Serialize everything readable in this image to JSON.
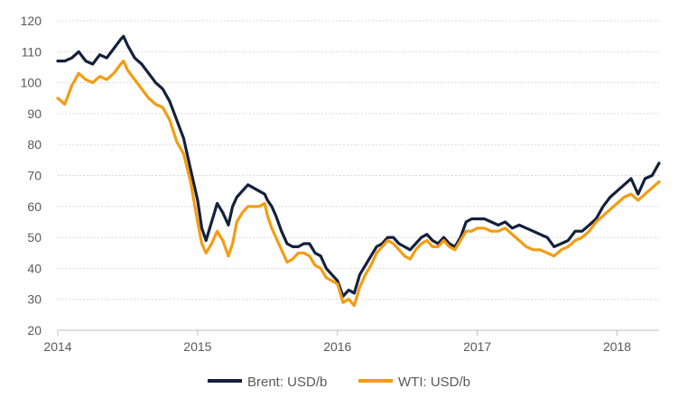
{
  "chart_data": {
    "type": "line",
    "title": "",
    "xlabel": "",
    "ylabel": "",
    "xlim": [
      2014.0,
      2018.3
    ],
    "ylim": [
      20,
      120
    ],
    "x_ticks": [
      "2014",
      "2015",
      "2016",
      "2017",
      "2018"
    ],
    "y_ticks": [
      "20",
      "30",
      "40",
      "50",
      "60",
      "70",
      "80",
      "90",
      "100",
      "110",
      "120"
    ],
    "grid": "horizontal dashed",
    "legend_position": "bottom",
    "series": [
      {
        "name": "Brent: USD/b",
        "color": "#14213d",
        "x": [
          2014.0,
          2014.05,
          2014.1,
          2014.15,
          2014.2,
          2014.25,
          2014.3,
          2014.35,
          2014.4,
          2014.45,
          2014.47,
          2014.5,
          2014.55,
          2014.6,
          2014.65,
          2014.7,
          2014.75,
          2014.8,
          2014.85,
          2014.9,
          2014.95,
          2015.0,
          2015.03,
          2015.06,
          2015.1,
          2015.14,
          2015.18,
          2015.22,
          2015.25,
          2015.28,
          2015.32,
          2015.36,
          2015.4,
          2015.44,
          2015.48,
          2015.5,
          2015.53,
          2015.56,
          2015.6,
          2015.64,
          2015.68,
          2015.72,
          2015.76,
          2015.8,
          2015.84,
          2015.88,
          2015.92,
          2015.96,
          2016.0,
          2016.04,
          2016.08,
          2016.12,
          2016.16,
          2016.2,
          2016.24,
          2016.28,
          2016.32,
          2016.36,
          2016.4,
          2016.44,
          2016.48,
          2016.52,
          2016.56,
          2016.6,
          2016.64,
          2016.68,
          2016.72,
          2016.76,
          2016.8,
          2016.84,
          2016.88,
          2016.92,
          2016.96,
          2017.0,
          2017.05,
          2017.1,
          2017.15,
          2017.2,
          2017.25,
          2017.3,
          2017.35,
          2017.4,
          2017.45,
          2017.5,
          2017.55,
          2017.6,
          2017.65,
          2017.7,
          2017.75,
          2017.8,
          2017.85,
          2017.9,
          2017.95,
          2018.0,
          2018.05,
          2018.1,
          2018.15,
          2018.2,
          2018.25,
          2018.3
        ],
        "y": [
          107,
          107,
          108,
          110,
          107,
          106,
          109,
          108,
          111,
          114,
          115,
          112,
          108,
          106,
          103,
          100,
          98,
          94,
          88,
          82,
          72,
          62,
          53,
          49,
          55,
          61,
          58,
          54,
          60,
          63,
          65,
          67,
          66,
          65,
          64,
          62,
          60,
          57,
          52,
          48,
          47,
          47,
          48,
          48,
          45,
          44,
          40,
          38,
          36,
          31,
          33,
          32,
          38,
          41,
          44,
          47,
          48,
          50,
          50,
          48,
          47,
          46,
          48,
          50,
          51,
          49,
          48,
          50,
          48,
          47,
          50,
          55,
          56,
          56,
          56,
          55,
          54,
          55,
          53,
          54,
          53,
          52,
          51,
          50,
          47,
          48,
          49,
          52,
          52,
          54,
          56,
          60,
          63,
          65,
          67,
          69,
          64,
          69,
          70,
          74
        ]
      },
      {
        "name": "WTI: USD/b",
        "color": "#f39c12",
        "x": [
          2014.0,
          2014.05,
          2014.1,
          2014.15,
          2014.2,
          2014.25,
          2014.3,
          2014.35,
          2014.4,
          2014.45,
          2014.47,
          2014.5,
          2014.55,
          2014.6,
          2014.65,
          2014.7,
          2014.75,
          2014.8,
          2014.85,
          2014.9,
          2014.95,
          2015.0,
          2015.03,
          2015.06,
          2015.1,
          2015.14,
          2015.18,
          2015.22,
          2015.25,
          2015.28,
          2015.32,
          2015.36,
          2015.4,
          2015.44,
          2015.48,
          2015.5,
          2015.53,
          2015.56,
          2015.6,
          2015.64,
          2015.68,
          2015.72,
          2015.76,
          2015.8,
          2015.84,
          2015.88,
          2015.92,
          2015.96,
          2016.0,
          2016.04,
          2016.08,
          2016.12,
          2016.16,
          2016.2,
          2016.24,
          2016.28,
          2016.32,
          2016.36,
          2016.4,
          2016.44,
          2016.48,
          2016.52,
          2016.56,
          2016.6,
          2016.64,
          2016.68,
          2016.72,
          2016.76,
          2016.8,
          2016.84,
          2016.88,
          2016.92,
          2016.96,
          2017.0,
          2017.05,
          2017.1,
          2017.15,
          2017.2,
          2017.25,
          2017.3,
          2017.35,
          2017.4,
          2017.45,
          2017.5,
          2017.55,
          2017.6,
          2017.65,
          2017.7,
          2017.75,
          2017.8,
          2017.85,
          2017.9,
          2017.95,
          2018.0,
          2018.05,
          2018.1,
          2018.15,
          2018.2,
          2018.25,
          2018.3
        ],
        "y": [
          95,
          93,
          99,
          103,
          101,
          100,
          102,
          101,
          103,
          106,
          107,
          104,
          101,
          98,
          95,
          93,
          92,
          88,
          81,
          77,
          68,
          55,
          48,
          45,
          48,
          52,
          49,
          44,
          48,
          55,
          58,
          60,
          60,
          60,
          61,
          57,
          53,
          50,
          46,
          42,
          43,
          45,
          45,
          44,
          41,
          40,
          37,
          36,
          35,
          29,
          30,
          28,
          34,
          38,
          41,
          45,
          47,
          49,
          48,
          46,
          44,
          43,
          46,
          48,
          49,
          47,
          47,
          49,
          47,
          46,
          49,
          52,
          52,
          53,
          53,
          52,
          52,
          53,
          51,
          49,
          47,
          46,
          46,
          45,
          44,
          46,
          47,
          49,
          50,
          52,
          55,
          57,
          59,
          61,
          63,
          64,
          62,
          64,
          66,
          68
        ]
      }
    ]
  }
}
